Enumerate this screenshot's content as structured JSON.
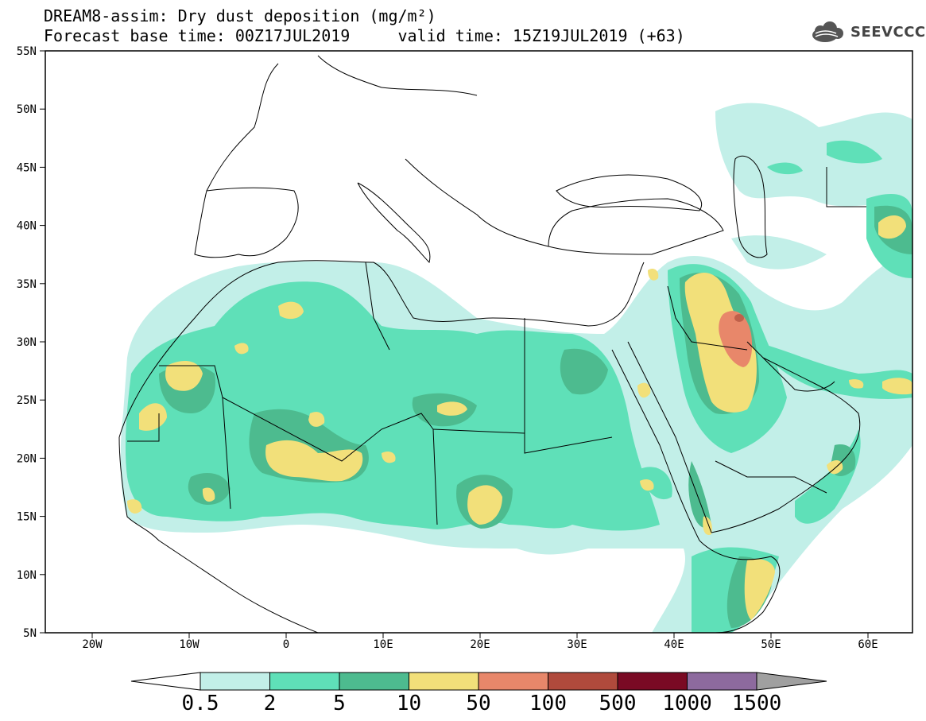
{
  "header": {
    "title": "DREAM8-assim: Dry dust deposition (mg/m²)",
    "subtitle": "Forecast base time: 00Z17JUL2019     valid time: 15Z19JUL2019 (+63)",
    "logo_text": "SEEVCCC"
  },
  "axes": {
    "lat_labels": [
      "55N",
      "50N",
      "45N",
      "40N",
      "35N",
      "30N",
      "25N",
      "20N",
      "15N",
      "10N",
      "5N"
    ],
    "lon_labels": [
      "20W",
      "10W",
      "0",
      "10E",
      "20E",
      "30E",
      "40E",
      "50E",
      "60E"
    ]
  },
  "legend": {
    "levels": [
      "0.5",
      "2",
      "5",
      "10",
      "50",
      "100",
      "500",
      "1000",
      "1500"
    ],
    "colors": [
      "#c2efe8",
      "#5fe0b8",
      "#4dbb8f",
      "#f2e07a",
      "#e8876a",
      "#b04a3c",
      "#7a0a24",
      "#8d6a9e",
      "#a0a0a0"
    ]
  },
  "colors": {
    "c1": "#c2efe8",
    "c2": "#5fe0b8",
    "c3": "#4dbb8f",
    "c4": "#f2e07a",
    "c5": "#e8876a",
    "c6": "#c0604a"
  }
}
